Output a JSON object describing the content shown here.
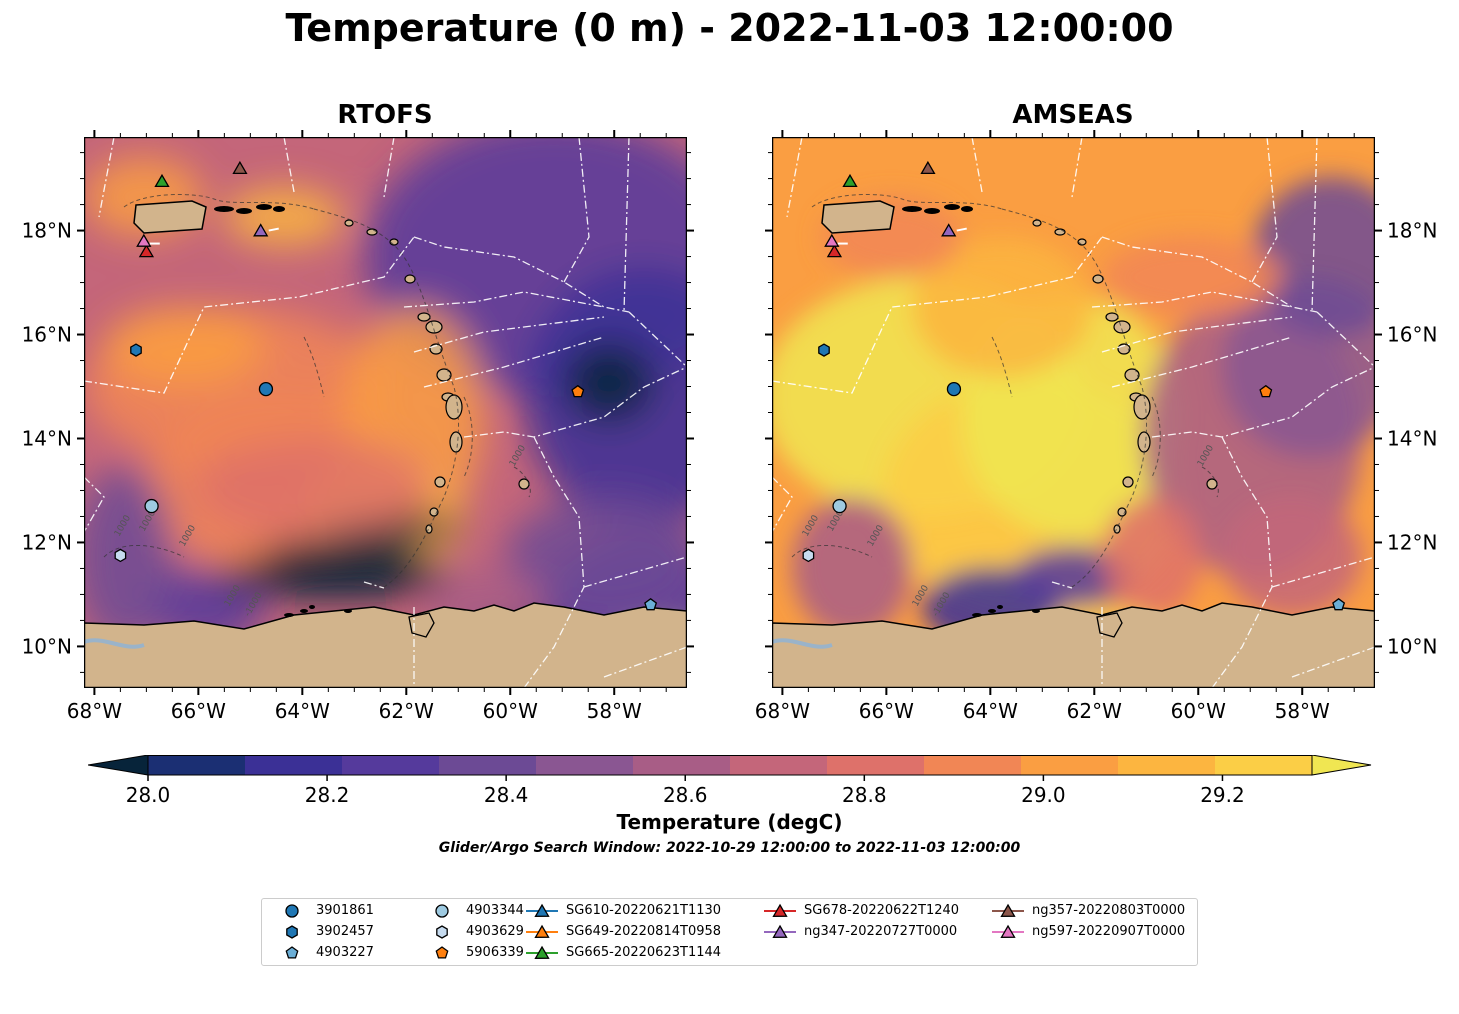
{
  "title": "Temperature (0 m) - 2022-11-03 12:00:00",
  "panels": [
    {
      "title": "RTOFS"
    },
    {
      "title": "AMSEAS"
    }
  ],
  "axes": {
    "lon_ticks": [
      "68°W",
      "66°W",
      "64°W",
      "62°W",
      "60°W",
      "58°W"
    ],
    "lat_ticks": [
      "10°N",
      "12°N",
      "14°N",
      "16°N",
      "18°N"
    ],
    "lon_range": [
      -68.2,
      -56.6
    ],
    "lat_range": [
      9.2,
      19.8
    ]
  },
  "contour_labels": [
    "1000",
    "1000",
    "1000",
    "1000",
    "-1000",
    "1000"
  ],
  "colorbar": {
    "label": "Temperature (degC)",
    "ticks": [
      "28.0",
      "28.2",
      "28.4",
      "28.6",
      "28.8",
      "29.0",
      "29.2"
    ],
    "range": [
      28.0,
      29.3
    ],
    "step": 0.1,
    "colors": [
      "#07243a",
      "#1b2f73",
      "#3b3096",
      "#553a9c",
      "#6c4a95",
      "#8a5692",
      "#a85d86",
      "#c4667a",
      "#de716a",
      "#f18655",
      "#fa9e42",
      "#fcb540",
      "#fbce46",
      "#f0e652"
    ]
  },
  "subtitle": "Glider/Argo Search Window: 2022-10-29 12:00:00 to 2022-11-03 12:00:00",
  "observations": [
    {
      "label": "3901861",
      "marker": "circle",
      "color": "#1f77b4",
      "lon": -64.7,
      "lat": 14.95
    },
    {
      "label": "3902457",
      "marker": "hexagon",
      "color": "#1f77b4",
      "lon": -67.2,
      "lat": 15.7
    },
    {
      "label": "4903227",
      "marker": "pentagon",
      "color": "#6baed6",
      "lon": -57.3,
      "lat": 10.8
    },
    {
      "label": "4903344",
      "marker": "circle",
      "color": "#9ecae1",
      "lon": -66.9,
      "lat": 12.7
    },
    {
      "label": "4903629",
      "marker": "hexagon",
      "color": "#c6dbef",
      "lon": -67.5,
      "lat": 11.75
    },
    {
      "label": "5906339",
      "marker": "pentagon",
      "color": "#ff7f0e",
      "lon": -58.7,
      "lat": 14.9
    },
    {
      "label": "SG610-20220621T1130",
      "marker": "triangle",
      "color": "#1f77b4",
      "lon": null,
      "lat": null
    },
    {
      "label": "SG649-20220814T0958",
      "marker": "triangle",
      "color": "#ff7f0e",
      "lon": null,
      "lat": null
    },
    {
      "label": "SG665-20220623T1144",
      "marker": "triangle",
      "color": "#2ca02c",
      "lon": -66.7,
      "lat": 18.95
    },
    {
      "label": "SG678-20220622T1240",
      "marker": "triangle",
      "color": "#d62728",
      "lon": -67.0,
      "lat": 17.6
    },
    {
      "label": "ng347-20220727T0000",
      "marker": "triangle",
      "color": "#9467bd",
      "lon": -64.8,
      "lat": 18.0
    },
    {
      "label": "ng357-20220803T0000",
      "marker": "triangle",
      "color": "#8c564b",
      "lon": -65.2,
      "lat": 19.2
    },
    {
      "label": "ng597-20220907T0000",
      "marker": "triangle",
      "color": "#e377c2",
      "lon": -67.05,
      "lat": 17.8
    }
  ]
}
